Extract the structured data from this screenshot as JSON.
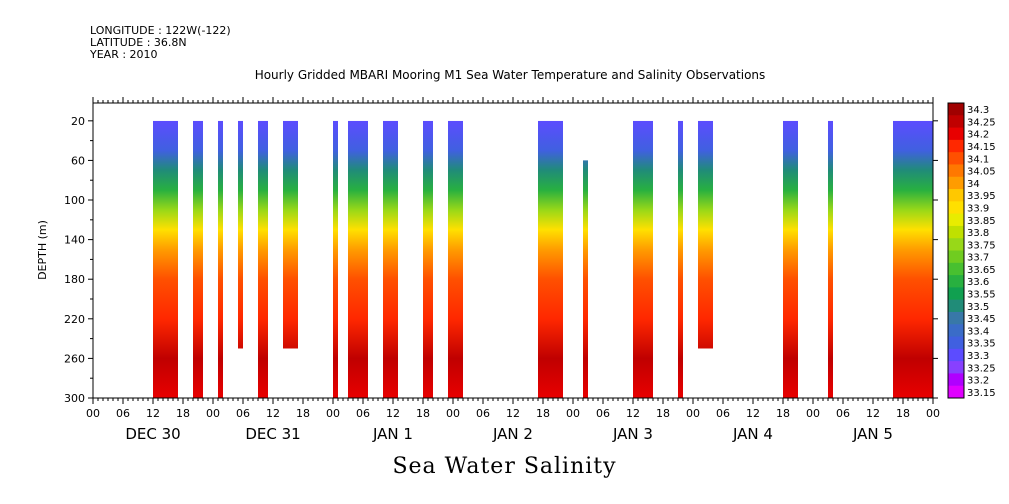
{
  "header": {
    "longitude": "LONGITUDE : 122W(-122)",
    "latitude": "LATITUDE : 36.8N",
    "year": "YEAR : 2010",
    "title": "Hourly Gridded MBARI Mooring M1 Sea Water Temperature and Salinity Observations"
  },
  "chart_data": {
    "type": "heatmap",
    "title": "Hourly Gridded MBARI Mooring M1 Sea Water Temperature and Salinity Observations",
    "variable": "Sea Water Salinity",
    "xlabel": "Sea Water Salinity",
    "ylabel": "DEPTH (m)",
    "ylim": [
      300,
      0
    ],
    "y_ticks": [
      20,
      60,
      100,
      140,
      180,
      220,
      260,
      300
    ],
    "x_range_hours": [
      0,
      168
    ],
    "x_hour_ticks": [
      "00",
      "06",
      "12",
      "18",
      "00",
      "06",
      "12",
      "18",
      "00",
      "06",
      "12",
      "18",
      "00",
      "06",
      "12",
      "18",
      "00",
      "06",
      "12",
      "18",
      "00",
      "06",
      "12",
      "18",
      "00",
      "06",
      "12",
      "18",
      "00"
    ],
    "x_day_labels": [
      "DEC 30",
      "DEC 31",
      "JAN  1",
      "JAN  2",
      "JAN  3",
      "JAN  4",
      "JAN  5"
    ],
    "colorbar": {
      "levels": [
        33.15,
        33.2,
        33.25,
        33.3,
        33.35,
        33.4,
        33.45,
        33.5,
        33.55,
        33.6,
        33.65,
        33.7,
        33.75,
        33.8,
        33.85,
        33.9,
        33.95,
        34,
        34.05,
        34.1,
        34.15,
        34.2,
        34.25,
        34.3
      ],
      "labels": [
        "33.15",
        "33.2",
        "33.25",
        "33.3",
        "33.35",
        "33.4",
        "33.45",
        "33.5",
        "33.55",
        "33.6",
        "33.65",
        "33.7",
        "33.75",
        "33.8",
        "33.85",
        "33.9",
        "33.95",
        "34",
        "34.05",
        "34.1",
        "34.15",
        "34.2",
        "34.25",
        "34.3"
      ],
      "colors": [
        "#e000ff",
        "#b000ff",
        "#8840ff",
        "#5c4cff",
        "#4060e0",
        "#3a6cc8",
        "#3878a8",
        "#208c78",
        "#10a050",
        "#28b040",
        "#48c030",
        "#70cc20",
        "#98d818",
        "#c0e000",
        "#e8ec00",
        "#ffe000",
        "#ffc800",
        "#ff9c00",
        "#ff7800",
        "#ff5000",
        "#ff2800",
        "#e80000",
        "#c00000",
        "#a00000"
      ]
    },
    "observation_segments": [
      {
        "start_hour": 12,
        "end_hour": 17,
        "min_depth": 20,
        "max_depth": 300
      },
      {
        "start_hour": 20,
        "end_hour": 22,
        "min_depth": 20,
        "max_depth": 300
      },
      {
        "start_hour": 25,
        "end_hour": 26,
        "min_depth": 20,
        "max_depth": 300
      },
      {
        "start_hour": 29,
        "end_hour": 30,
        "min_depth": 20,
        "max_depth": 250
      },
      {
        "start_hour": 33,
        "end_hour": 35,
        "min_depth": 20,
        "max_depth": 300
      },
      {
        "start_hour": 38,
        "end_hour": 41,
        "min_depth": 20,
        "max_depth": 250
      },
      {
        "start_hour": 48,
        "end_hour": 49,
        "min_depth": 20,
        "max_depth": 300
      },
      {
        "start_hour": 51,
        "end_hour": 55,
        "min_depth": 20,
        "max_depth": 300
      },
      {
        "start_hour": 58,
        "end_hour": 61,
        "min_depth": 20,
        "max_depth": 300
      },
      {
        "start_hour": 66,
        "end_hour": 68,
        "min_depth": 20,
        "max_depth": 300
      },
      {
        "start_hour": 71,
        "end_hour": 74,
        "min_depth": 20,
        "max_depth": 300
      },
      {
        "start_hour": 89,
        "end_hour": 94,
        "min_depth": 20,
        "max_depth": 300
      },
      {
        "start_hour": 98,
        "end_hour": 99,
        "min_depth": 60,
        "max_depth": 300
      },
      {
        "start_hour": 108,
        "end_hour": 112,
        "min_depth": 20,
        "max_depth": 300
      },
      {
        "start_hour": 117,
        "end_hour": 118,
        "min_depth": 20,
        "max_depth": 300
      },
      {
        "start_hour": 121,
        "end_hour": 124,
        "min_depth": 20,
        "max_depth": 250
      },
      {
        "start_hour": 138,
        "end_hour": 141,
        "min_depth": 20,
        "max_depth": 300
      },
      {
        "start_hour": 147,
        "end_hour": 148,
        "min_depth": 20,
        "max_depth": 300
      },
      {
        "start_hour": 160,
        "end_hour": 168,
        "min_depth": 20,
        "max_depth": 300
      }
    ],
    "salinity_profile": [
      {
        "depth": 20,
        "value": 33.32
      },
      {
        "depth": 50,
        "value": 33.36
      },
      {
        "depth": 70,
        "value": 33.5
      },
      {
        "depth": 90,
        "value": 33.62
      },
      {
        "depth": 110,
        "value": 33.76
      },
      {
        "depth": 130,
        "value": 33.92
      },
      {
        "depth": 150,
        "value": 34.04
      },
      {
        "depth": 180,
        "value": 34.1
      },
      {
        "depth": 220,
        "value": 34.16
      },
      {
        "depth": 260,
        "value": 34.25
      },
      {
        "depth": 300,
        "value": 34.2
      }
    ]
  }
}
